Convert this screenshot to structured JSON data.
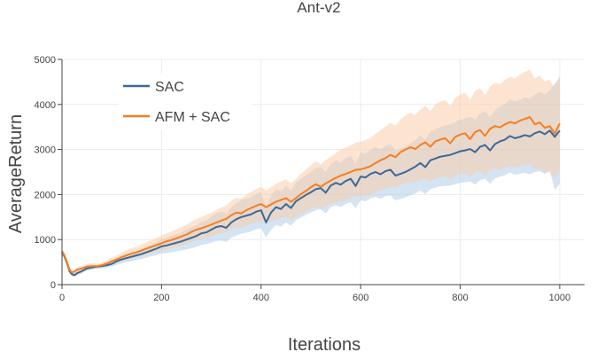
{
  "chart_data": {
    "type": "line",
    "title": "Ant-v2",
    "xlabel": "Iterations",
    "ylabel": "AverageReturn",
    "xlim": [
      0,
      1050
    ],
    "ylim": [
      0,
      5000
    ],
    "x_ticks": [
      0,
      200,
      400,
      600,
      800,
      1000
    ],
    "y_ticks": [
      0,
      1000,
      2000,
      3000,
      4000,
      5000
    ],
    "grid": true,
    "legend": "top-left",
    "x": [
      0,
      5,
      10,
      15,
      20,
      25,
      30,
      40,
      50,
      60,
      70,
      80,
      90,
      100,
      110,
      120,
      130,
      140,
      150,
      160,
      170,
      180,
      190,
      200,
      210,
      220,
      230,
      240,
      250,
      260,
      270,
      280,
      290,
      300,
      310,
      320,
      330,
      340,
      350,
      360,
      370,
      380,
      390,
      400,
      410,
      420,
      430,
      440,
      450,
      460,
      470,
      480,
      490,
      500,
      510,
      520,
      530,
      540,
      550,
      560,
      570,
      580,
      590,
      600,
      610,
      620,
      630,
      640,
      650,
      660,
      670,
      680,
      690,
      700,
      710,
      720,
      730,
      740,
      750,
      760,
      770,
      780,
      790,
      800,
      810,
      820,
      830,
      840,
      850,
      860,
      870,
      880,
      890,
      900,
      910,
      920,
      930,
      940,
      950,
      960,
      970,
      980,
      990,
      1000
    ],
    "series": [
      {
        "name": "SAC",
        "color": "#3a6a98",
        "band_color": "#a9c9e6",
        "values": [
          720,
          620,
          480,
          300,
          230,
          210,
          250,
          300,
          360,
          380,
          400,
          410,
          430,
          460,
          520,
          560,
          590,
          620,
          650,
          680,
          720,
          760,
          800,
          850,
          870,
          900,
          930,
          960,
          1000,
          1040,
          1080,
          1140,
          1160,
          1220,
          1280,
          1300,
          1260,
          1380,
          1450,
          1500,
          1530,
          1560,
          1620,
          1650,
          1380,
          1600,
          1720,
          1680,
          1790,
          1700,
          1850,
          1920,
          1990,
          2050,
          2120,
          2140,
          2040,
          2200,
          2260,
          2220,
          2300,
          2350,
          2190,
          2400,
          2380,
          2460,
          2500,
          2450,
          2520,
          2550,
          2420,
          2460,
          2500,
          2560,
          2620,
          2700,
          2610,
          2760,
          2800,
          2840,
          2860,
          2880,
          2920,
          2960,
          2980,
          3010,
          2940,
          3060,
          3100,
          2980,
          3120,
          3180,
          3220,
          3300,
          3250,
          3280,
          3320,
          3290,
          3360,
          3400,
          3340,
          3420,
          3280,
          3420
        ],
        "lower": [
          690,
          560,
          400,
          240,
          190,
          170,
          210,
          250,
          310,
          330,
          350,
          360,
          380,
          400,
          440,
          470,
          500,
          520,
          550,
          570,
          600,
          630,
          660,
          690,
          700,
          720,
          740,
          760,
          780,
          810,
          840,
          880,
          900,
          930,
          970,
          980,
          950,
          1040,
          1090,
          1130,
          1150,
          1180,
          1230,
          1250,
          1050,
          1220,
          1320,
          1290,
          1380,
          1310,
          1430,
          1490,
          1550,
          1600,
          1650,
          1670,
          1580,
          1720,
          1760,
          1730,
          1790,
          1830,
          1700,
          1870,
          1850,
          1920,
          1950,
          1900,
          1960,
          1980,
          1870,
          1900,
          1940,
          1980,
          2030,
          2090,
          2010,
          2120,
          2150,
          2180,
          2190,
          2200,
          2230,
          2260,
          2270,
          2290,
          2220,
          2320,
          2350,
          2240,
          2360,
          2400,
          2430,
          2490,
          2440,
          2460,
          2480,
          2450,
          2500,
          2520,
          2460,
          2530,
          2100,
          2240
        ],
        "upper": [
          750,
          680,
          560,
          360,
          270,
          250,
          290,
          350,
          410,
          430,
          450,
          460,
          480,
          520,
          600,
          650,
          680,
          720,
          750,
          790,
          840,
          890,
          940,
          1010,
          1040,
          1080,
          1120,
          1160,
          1220,
          1270,
          1320,
          1400,
          1420,
          1510,
          1590,
          1620,
          1570,
          1720,
          1810,
          1870,
          1910,
          1940,
          2010,
          2050,
          1710,
          1980,
          2120,
          2070,
          2200,
          2090,
          2270,
          2350,
          2430,
          2500,
          2590,
          2610,
          2500,
          2680,
          2760,
          2710,
          2810,
          2870,
          2680,
          2930,
          2910,
          3000,
          3050,
          3000,
          3080,
          3120,
          2970,
          3020,
          3060,
          3140,
          3210,
          3310,
          3210,
          3400,
          3450,
          3500,
          3530,
          3560,
          3610,
          3660,
          3690,
          3730,
          3660,
          3800,
          3850,
          3720,
          3880,
          3960,
          4010,
          4110,
          4060,
          4100,
          4160,
          4130,
          4220,
          4280,
          4220,
          4310,
          4460,
          4600
        ]
      },
      {
        "name": "AFM + SAC",
        "color": "#f57f20",
        "band_color": "#fcc9a3",
        "values": [
          740,
          650,
          500,
          330,
          270,
          290,
          330,
          360,
          400,
          410,
          410,
          430,
          470,
          520,
          560,
          610,
          650,
          690,
          720,
          760,
          800,
          840,
          880,
          920,
          960,
          990,
          1030,
          1070,
          1110,
          1170,
          1220,
          1250,
          1290,
          1330,
          1380,
          1420,
          1460,
          1540,
          1600,
          1580,
          1650,
          1700,
          1750,
          1790,
          1720,
          1780,
          1840,
          1880,
          1920,
          1840,
          1920,
          2010,
          2080,
          2160,
          2230,
          2170,
          2250,
          2310,
          2370,
          2420,
          2460,
          2500,
          2550,
          2560,
          2590,
          2630,
          2700,
          2760,
          2810,
          2880,
          2830,
          2940,
          3000,
          3050,
          3010,
          3100,
          3160,
          3060,
          3180,
          3220,
          3250,
          3140,
          3280,
          3330,
          3360,
          3230,
          3390,
          3430,
          3300,
          3460,
          3520,
          3490,
          3560,
          3610,
          3580,
          3640,
          3680,
          3720,
          3560,
          3600,
          3480,
          3520,
          3350,
          3580
        ],
        "lower": [
          700,
          580,
          430,
          270,
          220,
          240,
          280,
          310,
          350,
          360,
          360,
          380,
          410,
          440,
          480,
          520,
          550,
          580,
          610,
          640,
          670,
          700,
          730,
          760,
          790,
          810,
          840,
          870,
          900,
          950,
          990,
          1010,
          1040,
          1070,
          1110,
          1140,
          1170,
          1230,
          1280,
          1260,
          1310,
          1350,
          1390,
          1420,
          1360,
          1400,
          1450,
          1480,
          1510,
          1440,
          1500,
          1570,
          1620,
          1680,
          1730,
          1680,
          1740,
          1790,
          1830,
          1860,
          1890,
          1920,
          1960,
          1960,
          1980,
          2010,
          2060,
          2100,
          2130,
          2180,
          2140,
          2220,
          2260,
          2290,
          2260,
          2320,
          2360,
          2280,
          2370,
          2390,
          2410,
          2320,
          2430,
          2460,
          2480,
          2380,
          2500,
          2520,
          2420,
          2540,
          2580,
          2550,
          2600,
          2630,
          2600,
          2640,
          2660,
          2690,
          2560,
          2580,
          2490,
          2500,
          2380,
          2560
        ],
        "upper": [
          770,
          710,
          570,
          390,
          320,
          340,
          390,
          420,
          460,
          470,
          470,
          490,
          540,
          610,
          650,
          710,
          760,
          810,
          840,
          890,
          940,
          990,
          1040,
          1090,
          1140,
          1180,
          1230,
          1280,
          1330,
          1400,
          1460,
          1500,
          1550,
          1600,
          1660,
          1710,
          1760,
          1860,
          1930,
          1910,
          1990,
          2060,
          2120,
          2170,
          2090,
          2170,
          2240,
          2290,
          2340,
          2250,
          2350,
          2460,
          2550,
          2650,
          2740,
          2670,
          2770,
          2840,
          2920,
          2990,
          3040,
          3090,
          3150,
          3170,
          3210,
          3260,
          3350,
          3430,
          3500,
          3590,
          3530,
          3670,
          3750,
          3820,
          3770,
          3890,
          3970,
          3850,
          4000,
          4060,
          4100,
          3970,
          4150,
          4220,
          4260,
          4100,
          4300,
          4360,
          4200,
          4400,
          4480,
          4450,
          4540,
          4610,
          4580,
          4660,
          4720,
          4770,
          4580,
          4640,
          4500,
          4560,
          4340,
          4650
        ]
      }
    ]
  }
}
